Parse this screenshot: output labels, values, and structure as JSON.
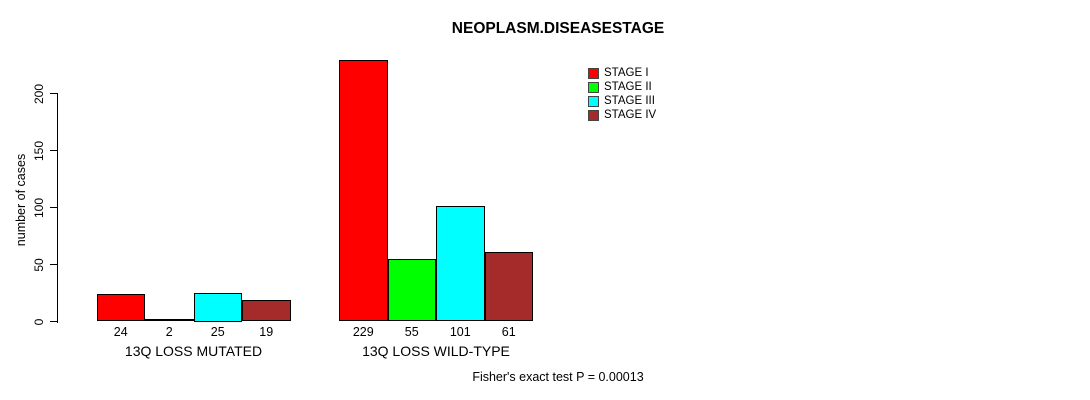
{
  "chart_data": {
    "type": "bar",
    "grouped": true,
    "title": "NEOPLASM.DISEASESTAGE",
    "xlabel": "",
    "ylabel": "number of cases",
    "categories": [
      "13Q LOSS MUTATED",
      "13Q LOSS WILD-TYPE"
    ],
    "series": [
      {
        "name": "STAGE I",
        "color": "#ff0000",
        "values": [
          24,
          229
        ]
      },
      {
        "name": "STAGE II",
        "color": "#00ff00",
        "values": [
          2,
          55
        ]
      },
      {
        "name": "STAGE III",
        "color": "#00ffff",
        "values": [
          25,
          101
        ]
      },
      {
        "name": "STAGE IV",
        "color": "#a52a2a",
        "values": [
          19,
          61
        ]
      }
    ],
    "bar_value_labels": [
      [
        24,
        2,
        25,
        19
      ],
      [
        229,
        55,
        101,
        61
      ]
    ],
    "yticks": [
      0,
      50,
      100,
      150,
      200
    ],
    "ylim": [
      0,
      230
    ],
    "grid": false,
    "legend_position": "top-right",
    "annotation": "Fisher's exact test P = 0.00013"
  },
  "colors": {
    "background": "#ffffff",
    "axis": "#000000",
    "text": "#000000"
  }
}
